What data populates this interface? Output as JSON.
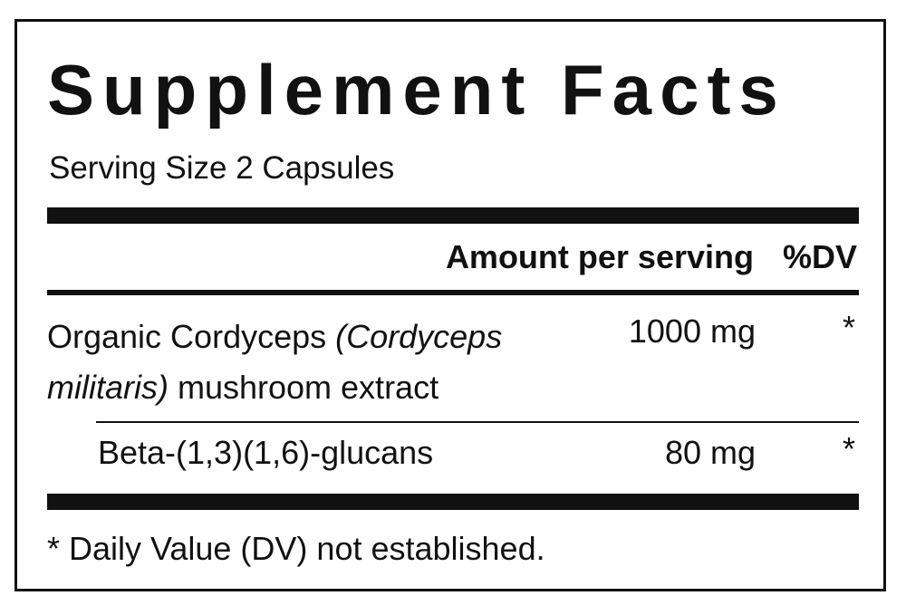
{
  "title": "Supplement Facts",
  "serving": "Serving Size 2 Capsules",
  "header": {
    "amount": "Amount per serving",
    "dv": "%DV"
  },
  "rows": [
    {
      "name_plain": "Organic Cordyceps ",
      "name_italic": "(Cordyceps militaris)",
      "name_rest": " mushroom extract",
      "amount": "1000 mg",
      "dv": "*"
    },
    {
      "name": "Beta-(1,3)(1,6)-glucans",
      "amount": "80 mg",
      "dv": "*"
    }
  ],
  "footnote": "* Daily Value (DV) not established."
}
